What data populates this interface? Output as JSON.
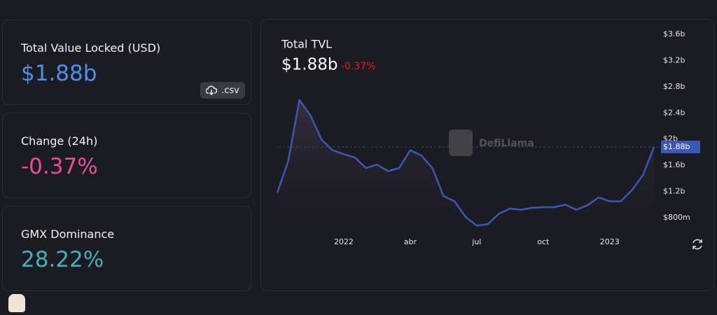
{
  "stats": [
    {
      "label": "Total Value Locked (USD)",
      "value": "$1.88b"
    },
    {
      "label": "Change (24h)",
      "value": "-0.37%"
    },
    {
      "label": "GMX Dominance",
      "value": "28.22%"
    }
  ],
  "csv_button": ".csv",
  "chart_data": {
    "type": "area",
    "title": "Total TVL",
    "headline": "$1.88b",
    "change": "-0.37%",
    "watermark": "DefiLlama",
    "categories": [
      null,
      null,
      null,
      null,
      null,
      null,
      "2022",
      null,
      null,
      null,
      null,
      null,
      "abr",
      null,
      null,
      null,
      null,
      null,
      "jul",
      null,
      null,
      null,
      null,
      null,
      "oct",
      null,
      null,
      null,
      null,
      null,
      "2023",
      null,
      null,
      null,
      null
    ],
    "values": [
      1.18,
      1.67,
      2.6,
      2.36,
      1.99,
      1.83,
      1.77,
      1.72,
      1.56,
      1.61,
      1.51,
      1.56,
      1.83,
      1.75,
      1.56,
      1.13,
      1.05,
      0.81,
      0.68,
      0.7,
      0.86,
      0.94,
      0.92,
      0.95,
      0.96,
      0.96,
      1.0,
      0.92,
      0.99,
      1.11,
      1.05,
      1.05,
      1.22,
      1.45,
      1.88
    ],
    "current_label": "$1.88b",
    "color": "#3b58b8",
    "ylim": [
      0.65,
      3.6
    ],
    "yticks": [
      {
        "value": 0.8,
        "label": "$800m"
      },
      {
        "value": 1.2,
        "label": "$1.2b"
      },
      {
        "value": 1.6,
        "label": "$1.6b"
      },
      {
        "value": 2,
        "label": "$2b"
      },
      {
        "value": 2.4,
        "label": "$2.4b"
      },
      {
        "value": 2.8,
        "label": "$2.8b"
      },
      {
        "value": 3.2,
        "label": "$3.2b"
      },
      {
        "value": 3.6,
        "label": "$3.6b"
      }
    ],
    "grid": false
  }
}
